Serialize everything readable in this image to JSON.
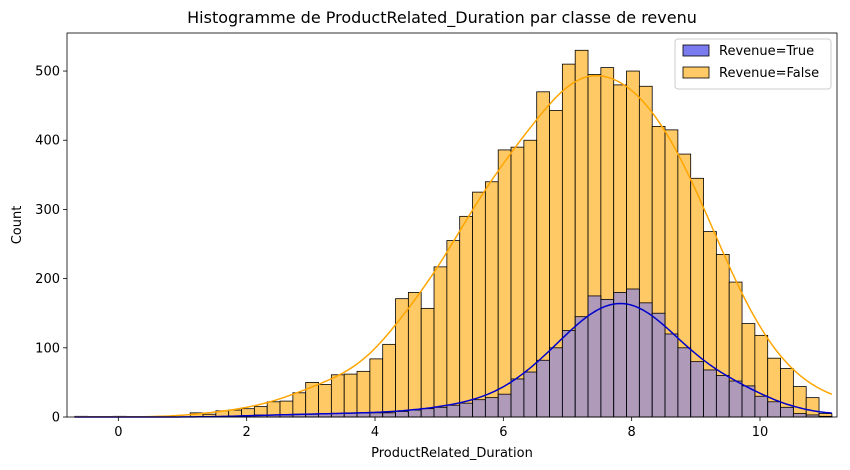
{
  "chart_data": {
    "type": "histogram",
    "title": "Histogramme de ProductRelated_Duration par classe de revenu",
    "xlabel": "ProductRelated_Duration",
    "ylabel": "Count",
    "xlim": [
      -0.8,
      11.2
    ],
    "ylim": [
      0,
      555
    ],
    "xticks": [
      0,
      2,
      4,
      6,
      8,
      10
    ],
    "yticks": [
      0,
      100,
      200,
      300,
      400,
      500
    ],
    "legend_position": "top-right",
    "bins": {
      "start": -0.68,
      "width": 0.2,
      "count": 59
    },
    "series": [
      {
        "name": "Revenue=False",
        "color": "#ffa500",
        "fill": "#ffc966",
        "kde_color": "#ffa500",
        "counts": [
          1,
          0,
          0,
          1,
          0,
          0,
          0,
          0,
          0,
          6,
          4,
          9,
          10,
          12,
          15,
          22,
          23,
          35,
          50,
          47,
          61,
          62,
          66,
          84,
          105,
          171,
          180,
          157,
          217,
          255,
          290,
          325,
          340,
          386,
          390,
          400,
          470,
          443,
          510,
          530,
          495,
          505,
          480,
          500,
          478,
          420,
          415,
          380,
          345,
          268,
          235,
          195,
          135,
          118,
          85,
          70,
          44,
          28,
          5
        ]
      },
      {
        "name": "Revenue=True",
        "color": "#0000ff",
        "fill": "#7b7bf0",
        "kde_color": "#0000cc",
        "counts": [
          0,
          0,
          0,
          0,
          0,
          0,
          0,
          0,
          0,
          0,
          0,
          0,
          1,
          2,
          3,
          3,
          3,
          4,
          4,
          5,
          5,
          6,
          6,
          6,
          6,
          8,
          10,
          12,
          14,
          17,
          20,
          25,
          28,
          33,
          55,
          65,
          82,
          100,
          125,
          145,
          175,
          170,
          180,
          185,
          165,
          150,
          120,
          100,
          80,
          68,
          60,
          52,
          45,
          30,
          22,
          14,
          5,
          3,
          1
        ]
      }
    ]
  }
}
